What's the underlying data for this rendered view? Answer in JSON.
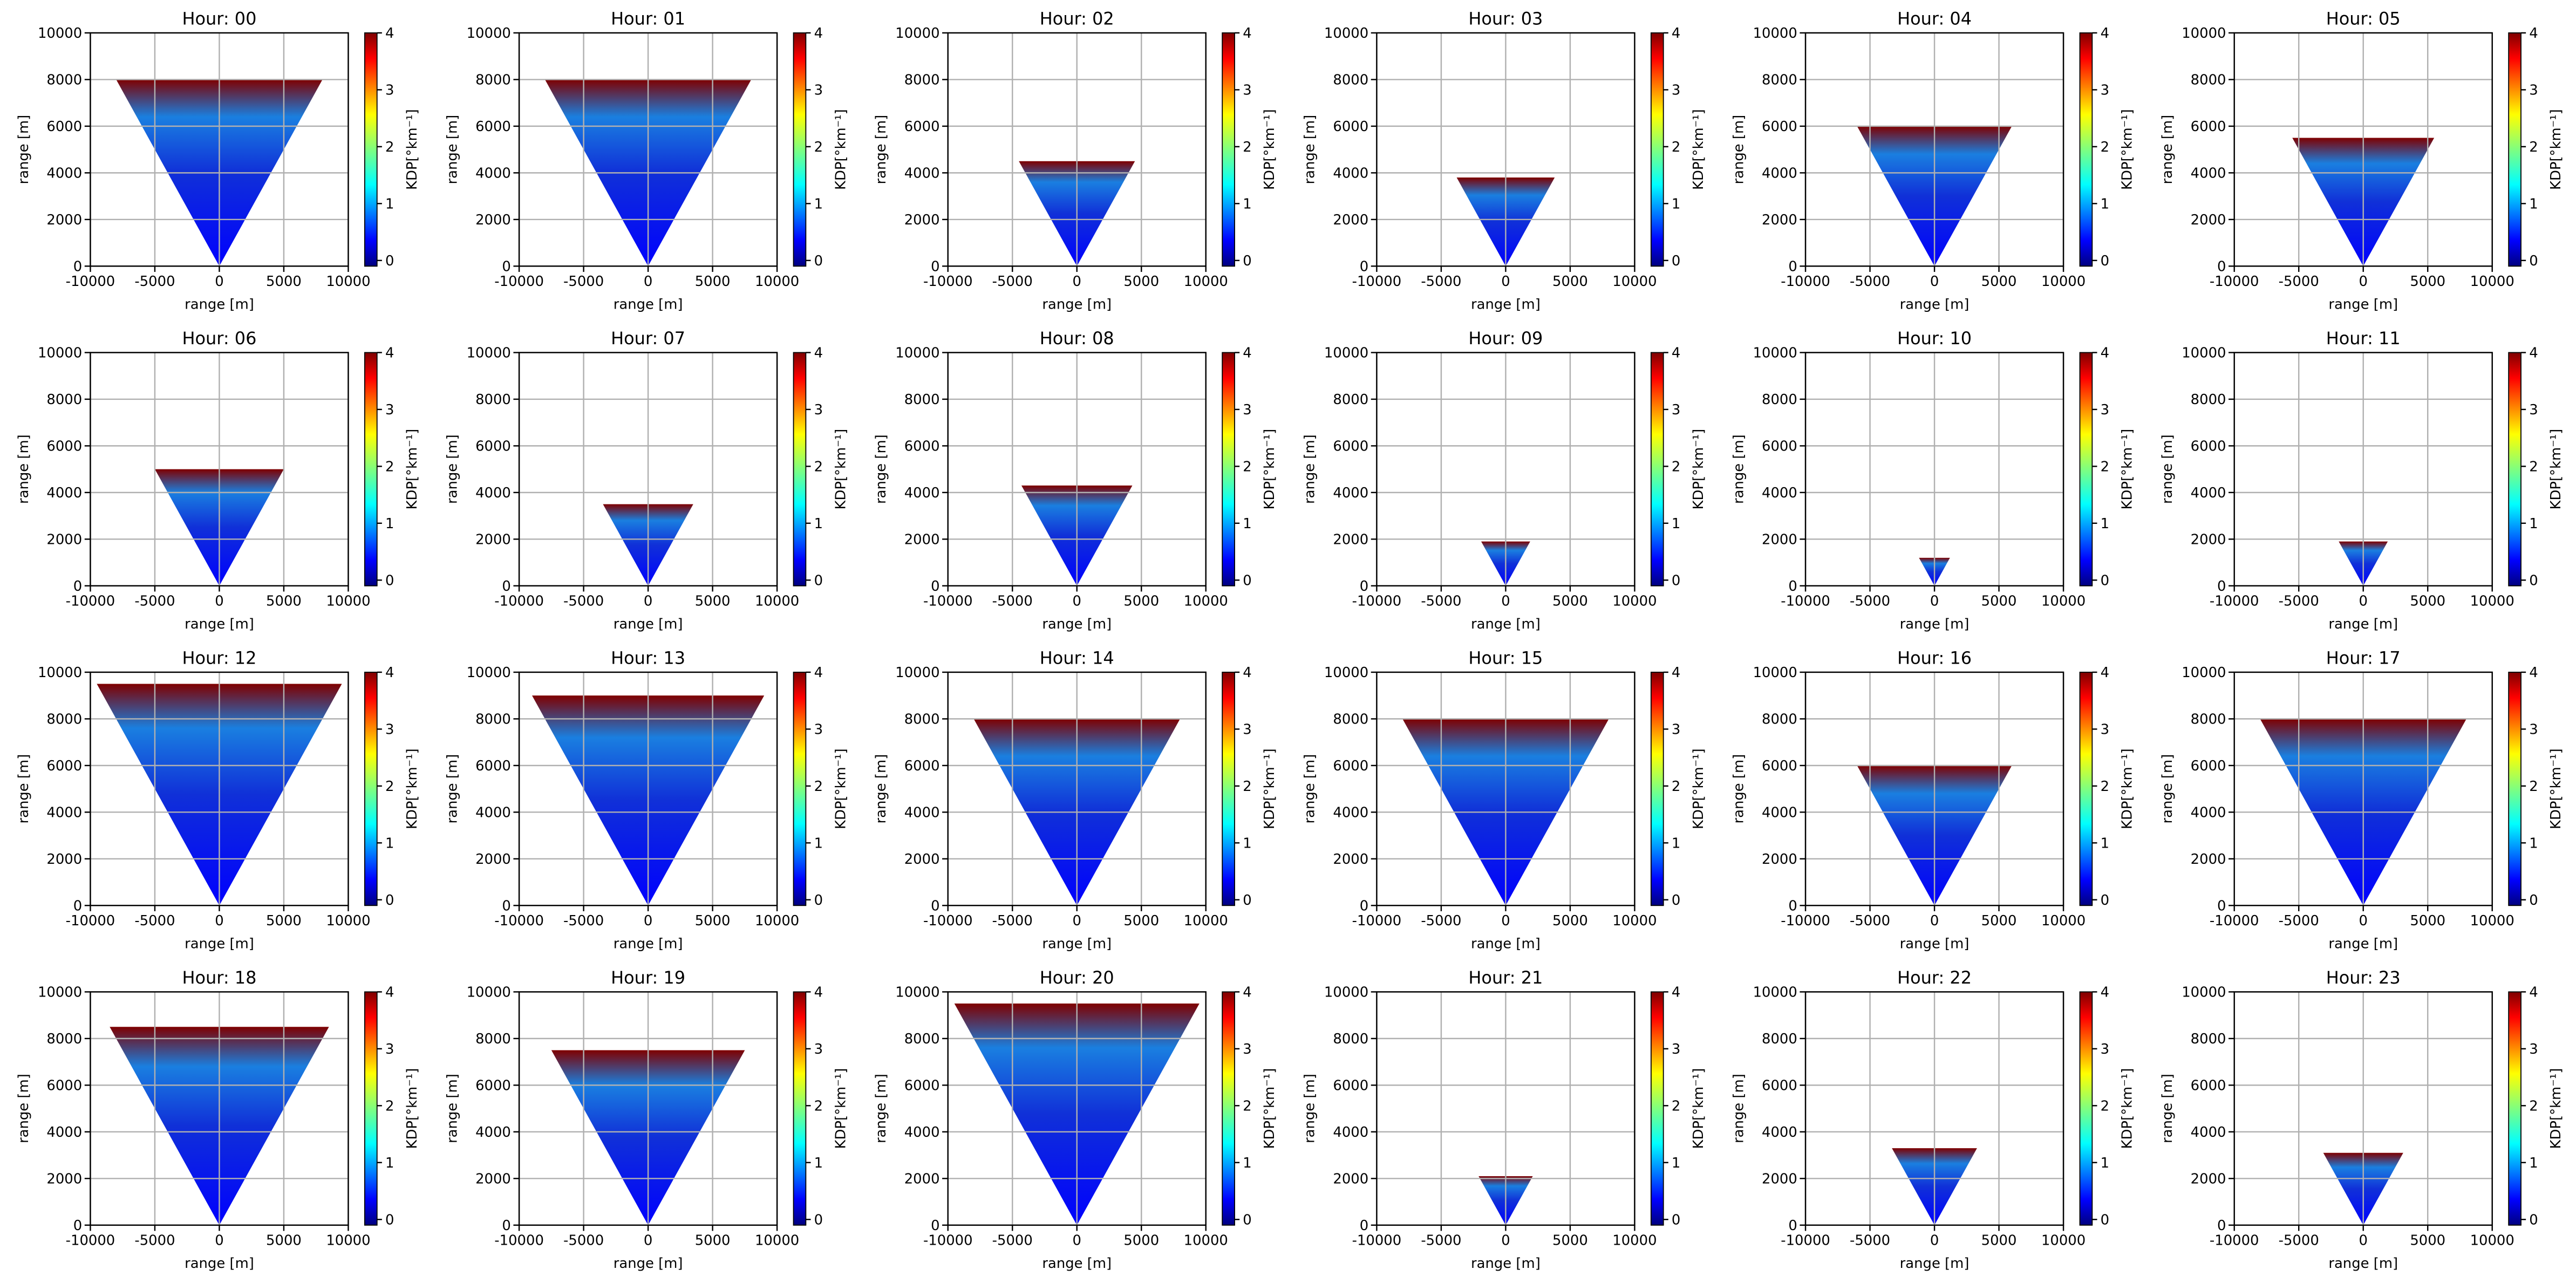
{
  "chart_data": [
    {
      "type": "radar",
      "title": "Hour: 00",
      "xlabel": "range [m]",
      "ylabel": "range [m]",
      "cbar_label": "KDP[°km⁻¹]",
      "top": 8000,
      "xlim": [
        -10000,
        10000
      ],
      "xticks": [
        -10000,
        -5000,
        0,
        5000,
        10000
      ],
      "ylim": [
        0,
        10000
      ],
      "yticks": [
        0,
        2000,
        4000,
        6000,
        8000,
        10000
      ],
      "clim": [
        -0.1,
        4
      ],
      "cticks": [
        0,
        1,
        2,
        3,
        4
      ],
      "grid": true
    },
    {
      "type": "radar",
      "title": "Hour: 01",
      "xlabel": "range [m]",
      "ylabel": "range [m]",
      "cbar_label": "KDP[°km⁻¹]",
      "top": 8000,
      "xlim": [
        -10000,
        10000
      ],
      "xticks": [
        -10000,
        -5000,
        0,
        5000,
        10000
      ],
      "ylim": [
        0,
        10000
      ],
      "yticks": [
        0,
        2000,
        4000,
        6000,
        8000,
        10000
      ],
      "clim": [
        -0.1,
        4
      ],
      "cticks": [
        0,
        1,
        2,
        3,
        4
      ],
      "grid": true
    },
    {
      "type": "radar",
      "title": "Hour: 02",
      "xlabel": "range [m]",
      "ylabel": "range [m]",
      "cbar_label": "KDP[°km⁻¹]",
      "top": 4500,
      "xlim": [
        -10000,
        10000
      ],
      "xticks": [
        -10000,
        -5000,
        0,
        5000,
        10000
      ],
      "ylim": [
        0,
        10000
      ],
      "yticks": [
        0,
        2000,
        4000,
        6000,
        8000,
        10000
      ],
      "clim": [
        -0.1,
        4
      ],
      "cticks": [
        0,
        1,
        2,
        3,
        4
      ],
      "grid": true
    },
    {
      "type": "radar",
      "title": "Hour: 03",
      "xlabel": "range [m]",
      "ylabel": "range [m]",
      "cbar_label": "KDP[°km⁻¹]",
      "top": 3800,
      "xlim": [
        -10000,
        10000
      ],
      "xticks": [
        -10000,
        -5000,
        0,
        5000,
        10000
      ],
      "ylim": [
        0,
        10000
      ],
      "yticks": [
        0,
        2000,
        4000,
        6000,
        8000,
        10000
      ],
      "clim": [
        -0.1,
        4
      ],
      "cticks": [
        0,
        1,
        2,
        3,
        4
      ],
      "grid": true
    },
    {
      "type": "radar",
      "title": "Hour: 04",
      "xlabel": "range [m]",
      "ylabel": "range [m]",
      "cbar_label": "KDP[°km⁻¹]",
      "top": 6000,
      "xlim": [
        -10000,
        10000
      ],
      "xticks": [
        -10000,
        -5000,
        0,
        5000,
        10000
      ],
      "ylim": [
        0,
        10000
      ],
      "yticks": [
        0,
        2000,
        4000,
        6000,
        8000,
        10000
      ],
      "clim": [
        -0.1,
        4
      ],
      "cticks": [
        0,
        1,
        2,
        3,
        4
      ],
      "grid": true
    },
    {
      "type": "radar",
      "title": "Hour: 05",
      "xlabel": "range [m]",
      "ylabel": "range [m]",
      "cbar_label": "KDP[°km⁻¹]",
      "top": 5500,
      "xlim": [
        -10000,
        10000
      ],
      "xticks": [
        -10000,
        -5000,
        0,
        5000,
        10000
      ],
      "ylim": [
        0,
        10000
      ],
      "yticks": [
        0,
        2000,
        4000,
        6000,
        8000,
        10000
      ],
      "clim": [
        -0.1,
        4
      ],
      "cticks": [
        0,
        1,
        2,
        3,
        4
      ],
      "grid": true
    },
    {
      "type": "radar",
      "title": "Hour: 06",
      "xlabel": "range [m]",
      "ylabel": "range [m]",
      "cbar_label": "KDP[°km⁻¹]",
      "top": 5000,
      "xlim": [
        -10000,
        10000
      ],
      "xticks": [
        -10000,
        -5000,
        0,
        5000,
        10000
      ],
      "ylim": [
        0,
        10000
      ],
      "yticks": [
        0,
        2000,
        4000,
        6000,
        8000,
        10000
      ],
      "clim": [
        -0.1,
        4
      ],
      "cticks": [
        0,
        1,
        2,
        3,
        4
      ],
      "grid": true
    },
    {
      "type": "radar",
      "title": "Hour: 07",
      "xlabel": "range [m]",
      "ylabel": "range [m]",
      "cbar_label": "KDP[°km⁻¹]",
      "top": 3500,
      "xlim": [
        -10000,
        10000
      ],
      "xticks": [
        -10000,
        -5000,
        0,
        5000,
        10000
      ],
      "ylim": [
        0,
        10000
      ],
      "yticks": [
        0,
        2000,
        4000,
        6000,
        8000,
        10000
      ],
      "clim": [
        -0.1,
        4
      ],
      "cticks": [
        0,
        1,
        2,
        3,
        4
      ],
      "grid": true
    },
    {
      "type": "radar",
      "title": "Hour: 08",
      "xlabel": "range [m]",
      "ylabel": "range [m]",
      "cbar_label": "KDP[°km⁻¹]",
      "top": 4300,
      "xlim": [
        -10000,
        10000
      ],
      "xticks": [
        -10000,
        -5000,
        0,
        5000,
        10000
      ],
      "ylim": [
        0,
        10000
      ],
      "yticks": [
        0,
        2000,
        4000,
        6000,
        8000,
        10000
      ],
      "clim": [
        -0.1,
        4
      ],
      "cticks": [
        0,
        1,
        2,
        3,
        4
      ],
      "grid": true
    },
    {
      "type": "radar",
      "title": "Hour: 09",
      "xlabel": "range [m]",
      "ylabel": "range [m]",
      "cbar_label": "KDP[°km⁻¹]",
      "top": 1900,
      "xlim": [
        -10000,
        10000
      ],
      "xticks": [
        -10000,
        -5000,
        0,
        5000,
        10000
      ],
      "ylim": [
        0,
        10000
      ],
      "yticks": [
        0,
        2000,
        4000,
        6000,
        8000,
        10000
      ],
      "clim": [
        -0.1,
        4
      ],
      "cticks": [
        0,
        1,
        2,
        3,
        4
      ],
      "grid": true
    },
    {
      "type": "radar",
      "title": "Hour: 10",
      "xlabel": "range [m]",
      "ylabel": "range [m]",
      "cbar_label": "KDP[°km⁻¹]",
      "top": 1200,
      "xlim": [
        -10000,
        10000
      ],
      "xticks": [
        -10000,
        -5000,
        0,
        5000,
        10000
      ],
      "ylim": [
        0,
        10000
      ],
      "yticks": [
        0,
        2000,
        4000,
        6000,
        8000,
        10000
      ],
      "clim": [
        -0.1,
        4
      ],
      "cticks": [
        0,
        1,
        2,
        3,
        4
      ],
      "grid": true
    },
    {
      "type": "radar",
      "title": "Hour: 11",
      "xlabel": "range [m]",
      "ylabel": "range [m]",
      "cbar_label": "KDP[°km⁻¹]",
      "top": 1900,
      "xlim": [
        -10000,
        10000
      ],
      "xticks": [
        -10000,
        -5000,
        0,
        5000,
        10000
      ],
      "ylim": [
        0,
        10000
      ],
      "yticks": [
        0,
        2000,
        4000,
        6000,
        8000,
        10000
      ],
      "clim": [
        -0.1,
        4
      ],
      "cticks": [
        0,
        1,
        2,
        3,
        4
      ],
      "grid": true
    },
    {
      "type": "radar",
      "title": "Hour: 12",
      "xlabel": "range [m]",
      "ylabel": "range [m]",
      "cbar_label": "KDP[°km⁻¹]",
      "top": 9500,
      "xlim": [
        -10000,
        10000
      ],
      "xticks": [
        -10000,
        -5000,
        0,
        5000,
        10000
      ],
      "ylim": [
        0,
        10000
      ],
      "yticks": [
        0,
        2000,
        4000,
        6000,
        8000,
        10000
      ],
      "clim": [
        -0.1,
        4
      ],
      "cticks": [
        0,
        1,
        2,
        3,
        4
      ],
      "grid": true
    },
    {
      "type": "radar",
      "title": "Hour: 13",
      "xlabel": "range [m]",
      "ylabel": "range [m]",
      "cbar_label": "KDP[°km⁻¹]",
      "top": 9000,
      "xlim": [
        -10000,
        10000
      ],
      "xticks": [
        -10000,
        -5000,
        0,
        5000,
        10000
      ],
      "ylim": [
        0,
        10000
      ],
      "yticks": [
        0,
        2000,
        4000,
        6000,
        8000,
        10000
      ],
      "clim": [
        -0.1,
        4
      ],
      "cticks": [
        0,
        1,
        2,
        3,
        4
      ],
      "grid": true
    },
    {
      "type": "radar",
      "title": "Hour: 14",
      "xlabel": "range [m]",
      "ylabel": "range [m]",
      "cbar_label": "KDP[°km⁻¹]",
      "top": 8000,
      "xlim": [
        -10000,
        10000
      ],
      "xticks": [
        -10000,
        -5000,
        0,
        5000,
        10000
      ],
      "ylim": [
        0,
        10000
      ],
      "yticks": [
        0,
        2000,
        4000,
        6000,
        8000,
        10000
      ],
      "clim": [
        -0.1,
        4
      ],
      "cticks": [
        0,
        1,
        2,
        3,
        4
      ],
      "grid": true
    },
    {
      "type": "radar",
      "title": "Hour: 15",
      "xlabel": "range [m]",
      "ylabel": "range [m]",
      "cbar_label": "KDP[°km⁻¹]",
      "top": 8000,
      "xlim": [
        -10000,
        10000
      ],
      "xticks": [
        -10000,
        -5000,
        0,
        5000,
        10000
      ],
      "ylim": [
        0,
        10000
      ],
      "yticks": [
        0,
        2000,
        4000,
        6000,
        8000,
        10000
      ],
      "clim": [
        -0.1,
        4
      ],
      "cticks": [
        0,
        1,
        2,
        3,
        4
      ],
      "grid": true
    },
    {
      "type": "radar",
      "title": "Hour: 16",
      "xlabel": "range [m]",
      "ylabel": "range [m]",
      "cbar_label": "KDP[°km⁻¹]",
      "top": 6000,
      "xlim": [
        -10000,
        10000
      ],
      "xticks": [
        -10000,
        -5000,
        0,
        5000,
        10000
      ],
      "ylim": [
        0,
        10000
      ],
      "yticks": [
        0,
        2000,
        4000,
        6000,
        8000,
        10000
      ],
      "clim": [
        -0.1,
        4
      ],
      "cticks": [
        0,
        1,
        2,
        3,
        4
      ],
      "grid": true
    },
    {
      "type": "radar",
      "title": "Hour: 17",
      "xlabel": "range [m]",
      "ylabel": "range [m]",
      "cbar_label": "KDP[°km⁻¹]",
      "top": 8000,
      "xlim": [
        -10000,
        10000
      ],
      "xticks": [
        -10000,
        -5000,
        0,
        5000,
        10000
      ],
      "ylim": [
        0,
        10000
      ],
      "yticks": [
        0,
        2000,
        4000,
        6000,
        8000,
        10000
      ],
      "clim": [
        -0.1,
        4
      ],
      "cticks": [
        0,
        1,
        2,
        3,
        4
      ],
      "grid": true
    },
    {
      "type": "radar",
      "title": "Hour: 18",
      "xlabel": "range [m]",
      "ylabel": "range [m]",
      "cbar_label": "KDP[°km⁻¹]",
      "top": 8500,
      "xlim": [
        -10000,
        10000
      ],
      "xticks": [
        -10000,
        -5000,
        0,
        5000,
        10000
      ],
      "ylim": [
        0,
        10000
      ],
      "yticks": [
        0,
        2000,
        4000,
        6000,
        8000,
        10000
      ],
      "clim": [
        -0.1,
        4
      ],
      "cticks": [
        0,
        1,
        2,
        3,
        4
      ],
      "grid": true
    },
    {
      "type": "radar",
      "title": "Hour: 19",
      "xlabel": "range [m]",
      "ylabel": "range [m]",
      "cbar_label": "KDP[°km⁻¹]",
      "top": 7500,
      "xlim": [
        -10000,
        10000
      ],
      "xticks": [
        -10000,
        -5000,
        0,
        5000,
        10000
      ],
      "ylim": [
        0,
        10000
      ],
      "yticks": [
        0,
        2000,
        4000,
        6000,
        8000,
        10000
      ],
      "clim": [
        -0.1,
        4
      ],
      "cticks": [
        0,
        1,
        2,
        3,
        4
      ],
      "grid": true
    },
    {
      "type": "radar",
      "title": "Hour: 20",
      "xlabel": "range [m]",
      "ylabel": "range [m]",
      "cbar_label": "KDP[°km⁻¹]",
      "top": 9500,
      "xlim": [
        -10000,
        10000
      ],
      "xticks": [
        -10000,
        -5000,
        0,
        5000,
        10000
      ],
      "ylim": [
        0,
        10000
      ],
      "yticks": [
        0,
        2000,
        4000,
        6000,
        8000,
        10000
      ],
      "clim": [
        -0.1,
        4
      ],
      "cticks": [
        0,
        1,
        2,
        3,
        4
      ],
      "grid": true
    },
    {
      "type": "radar",
      "title": "Hour: 21",
      "xlabel": "range [m]",
      "ylabel": "range [m]",
      "cbar_label": "KDP[°km⁻¹]",
      "top": 2100,
      "xlim": [
        -10000,
        10000
      ],
      "xticks": [
        -10000,
        -5000,
        0,
        5000,
        10000
      ],
      "ylim": [
        0,
        10000
      ],
      "yticks": [
        0,
        2000,
        4000,
        6000,
        8000,
        10000
      ],
      "clim": [
        -0.1,
        4
      ],
      "cticks": [
        0,
        1,
        2,
        3,
        4
      ],
      "grid": true
    },
    {
      "type": "radar",
      "title": "Hour: 22",
      "xlabel": "range [m]",
      "ylabel": "range [m]",
      "cbar_label": "KDP[°km⁻¹]",
      "top": 3300,
      "xlim": [
        -10000,
        10000
      ],
      "xticks": [
        -10000,
        -5000,
        0,
        5000,
        10000
      ],
      "ylim": [
        0,
        10000
      ],
      "yticks": [
        0,
        2000,
        4000,
        6000,
        8000,
        10000
      ],
      "clim": [
        -0.1,
        4
      ],
      "cticks": [
        0,
        1,
        2,
        3,
        4
      ],
      "grid": true
    },
    {
      "type": "radar",
      "title": "Hour: 23",
      "xlabel": "range [m]",
      "ylabel": "range [m]",
      "cbar_label": "KDP[°km⁻¹]",
      "top": 3100,
      "xlim": [
        -10000,
        10000
      ],
      "xticks": [
        -10000,
        -5000,
        0,
        5000,
        10000
      ],
      "ylim": [
        0,
        10000
      ],
      "yticks": [
        0,
        2000,
        4000,
        6000,
        8000,
        10000
      ],
      "clim": [
        -0.1,
        4
      ],
      "cticks": [
        0,
        1,
        2,
        3,
        4
      ],
      "grid": true
    }
  ]
}
